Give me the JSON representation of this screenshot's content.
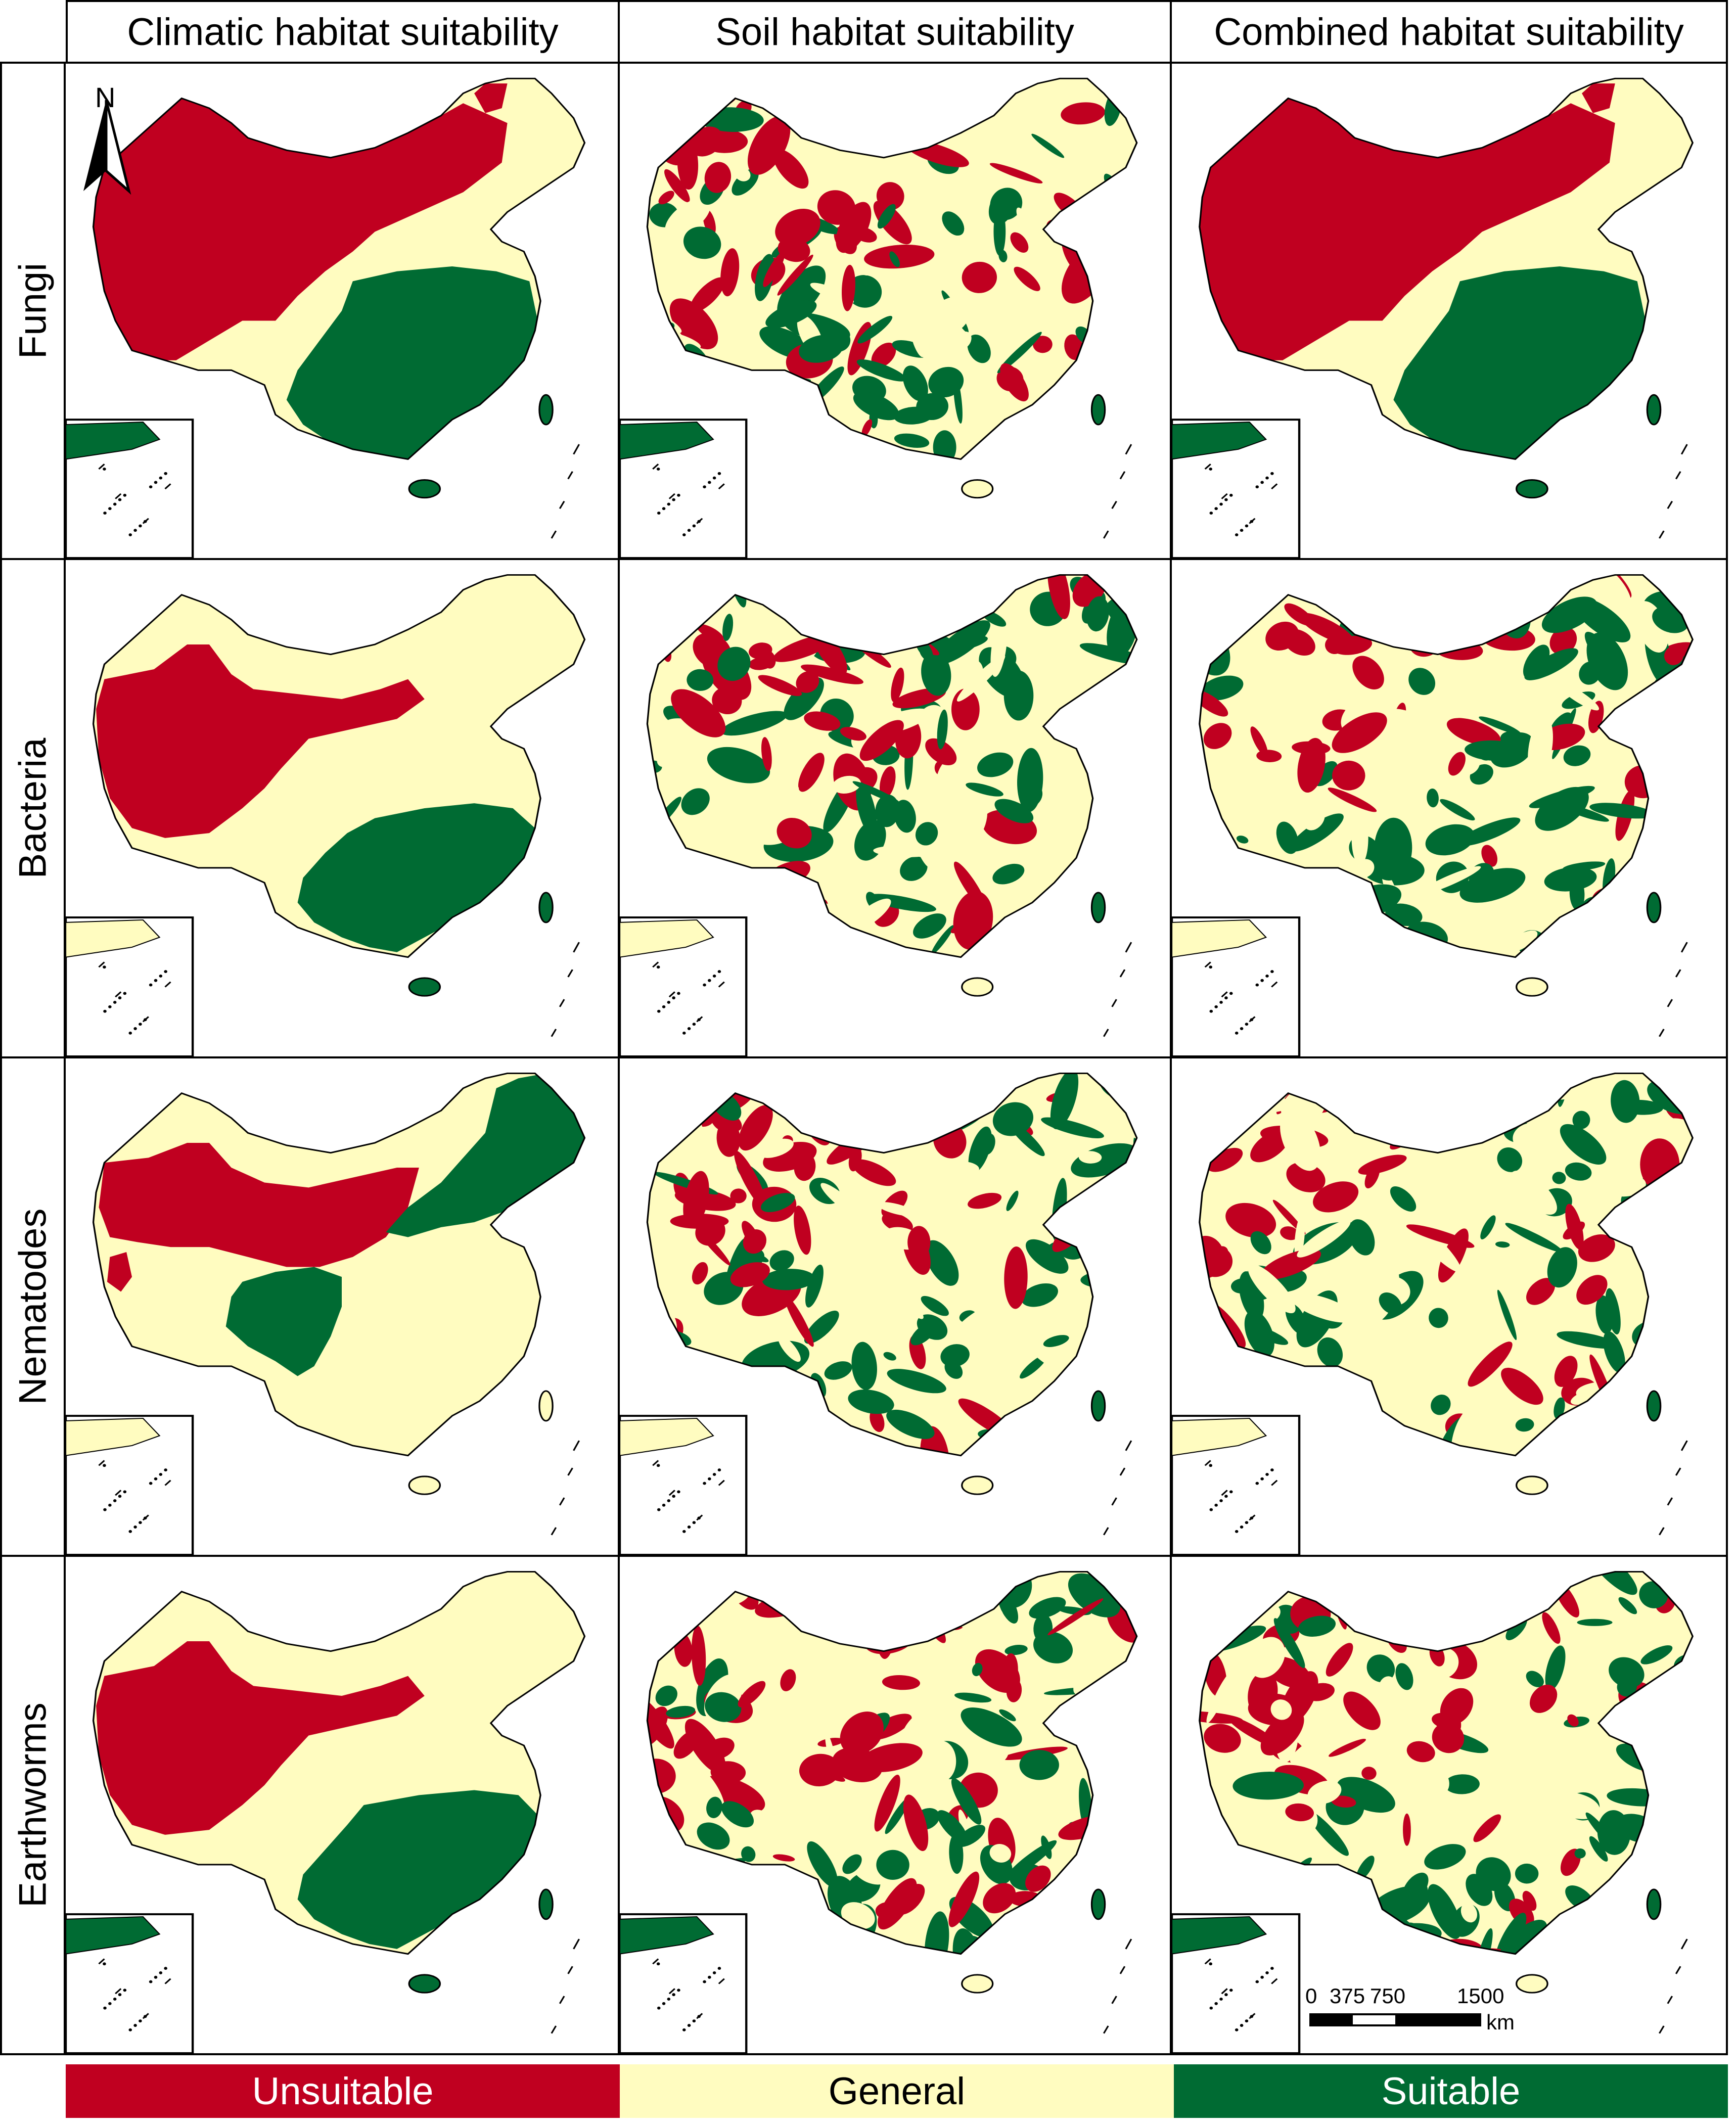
{
  "columns": [
    "Climatic habitat suitability",
    "Soil habitat suitability",
    "Combined habitat suitability"
  ],
  "rows": [
    "Fungi",
    "Bacteria",
    "Nematodes",
    "Earthworms"
  ],
  "legend": [
    {
      "label": "Unsuitable",
      "color": "#c00020"
    },
    {
      "label": "General",
      "color": "#fffcc0"
    },
    {
      "label": "Suitable",
      "color": "#006b33"
    }
  ],
  "north_label": "N",
  "scale_bar": {
    "ticks": [
      "0",
      "375",
      "750",
      "1500"
    ],
    "unit": "km"
  },
  "maps": {
    "fungi": {
      "climatic": "zones",
      "soil": "patchy",
      "combined": "zones"
    },
    "bacteria": {
      "climatic": "zones",
      "soil": "patchy",
      "combined": "patchy"
    },
    "nematodes": {
      "climatic": "zones",
      "soil": "patchy",
      "combined": "patchy"
    },
    "earthworms": {
      "climatic": "zones",
      "soil": "patchy",
      "combined": "patchy"
    }
  }
}
